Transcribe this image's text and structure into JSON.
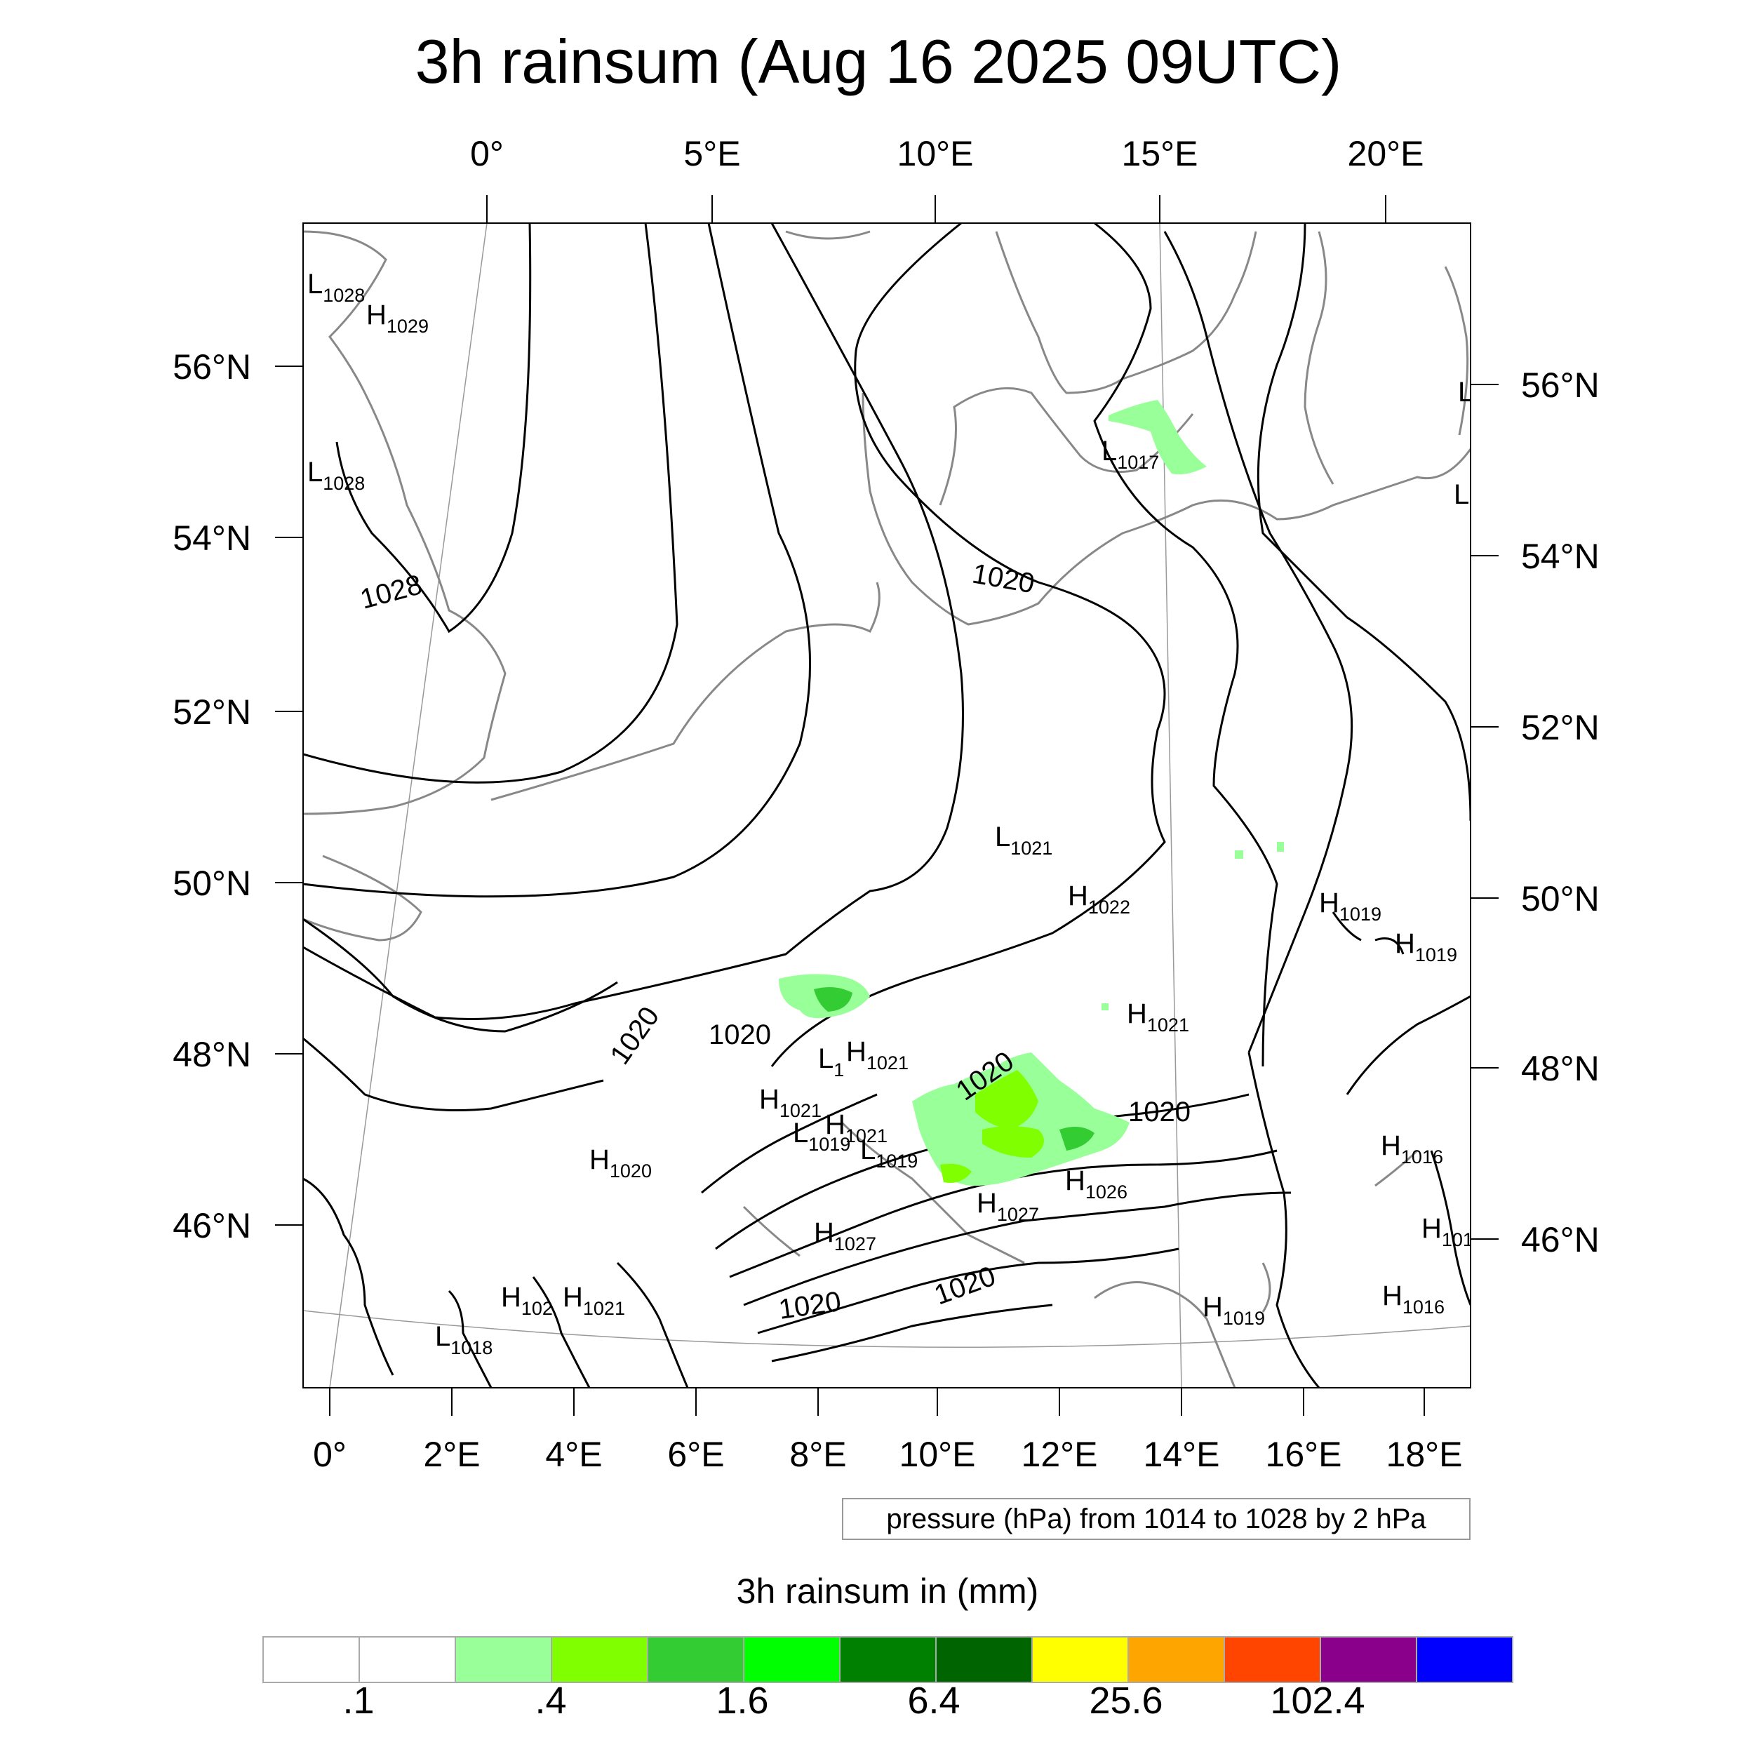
{
  "title": "3h rainsum (Aug 16 2025 09UTC)",
  "top_lon_labels": [
    "0°",
    "5°E",
    "10°E",
    "15°E",
    "20°E"
  ],
  "left_lat_labels": [
    "56°N",
    "54°N",
    "52°N",
    "50°N",
    "48°N",
    "46°N"
  ],
  "right_lat_labels": [
    "56°N",
    "54°N",
    "52°N",
    "50°N",
    "48°N",
    "46°N"
  ],
  "bottom_lon_labels": [
    "0°",
    "2°E",
    "4°E",
    "6°E",
    "8°E",
    "10°E",
    "12°E",
    "14°E",
    "16°E",
    "18°E"
  ],
  "pressure_note": "pressure (hPa) from 1014 to 1028 by 2 hPa",
  "colorbar": {
    "title": "3h rainsum in (mm)",
    "colors": [
      "#ffffff",
      "#ffffff",
      "#99ff99",
      "#80ff00",
      "#33cc33",
      "#00ff00",
      "#008000",
      "#006400",
      "#ffff00",
      "#ffa500",
      "#ff4500",
      "#8b008b",
      "#0000ff"
    ],
    "labels": [
      ".1",
      ".4",
      "1.6",
      "6.4",
      "25.6",
      "102.4"
    ]
  },
  "pressure_centers": [
    {
      "t": "L",
      "v": "1028"
    },
    {
      "t": "H",
      "v": "1029"
    },
    {
      "t": "L",
      "v": "1028"
    },
    {
      "t": "L",
      "v": "1017"
    },
    {
      "t": "L",
      "v": "1021"
    },
    {
      "t": "H",
      "v": "1022"
    },
    {
      "t": "H",
      "v": "1019"
    },
    {
      "t": "H",
      "v": "1019"
    },
    {
      "t": "H",
      "v": "1021"
    },
    {
      "t": "L",
      "v": "1"
    },
    {
      "t": "H",
      "v": "1021"
    },
    {
      "t": "H",
      "v": "1021"
    },
    {
      "t": "H",
      "v": "1021"
    },
    {
      "t": "L",
      "v": "1019"
    },
    {
      "t": "L",
      "v": "1019"
    },
    {
      "t": "H",
      "v": "1020"
    },
    {
      "t": "H",
      "v": "1026"
    },
    {
      "t": "H",
      "v": "1027"
    },
    {
      "t": "H",
      "v": "1027"
    },
    {
      "t": "H",
      "v": "1016"
    },
    {
      "t": "H",
      "v": "101"
    },
    {
      "t": "H",
      "v": "1016"
    },
    {
      "t": "H",
      "v": "102"
    },
    {
      "t": "H",
      "v": "1021"
    },
    {
      "t": "L",
      "v": "1018"
    },
    {
      "t": "H",
      "v": "1019"
    },
    {
      "t": "L",
      "v": ""
    },
    {
      "t": "L",
      "v": ""
    }
  ],
  "contour_labels": [
    "1028",
    "1020",
    "1020",
    "1020",
    "1020",
    "1020",
    "1020",
    "1020"
  ]
}
